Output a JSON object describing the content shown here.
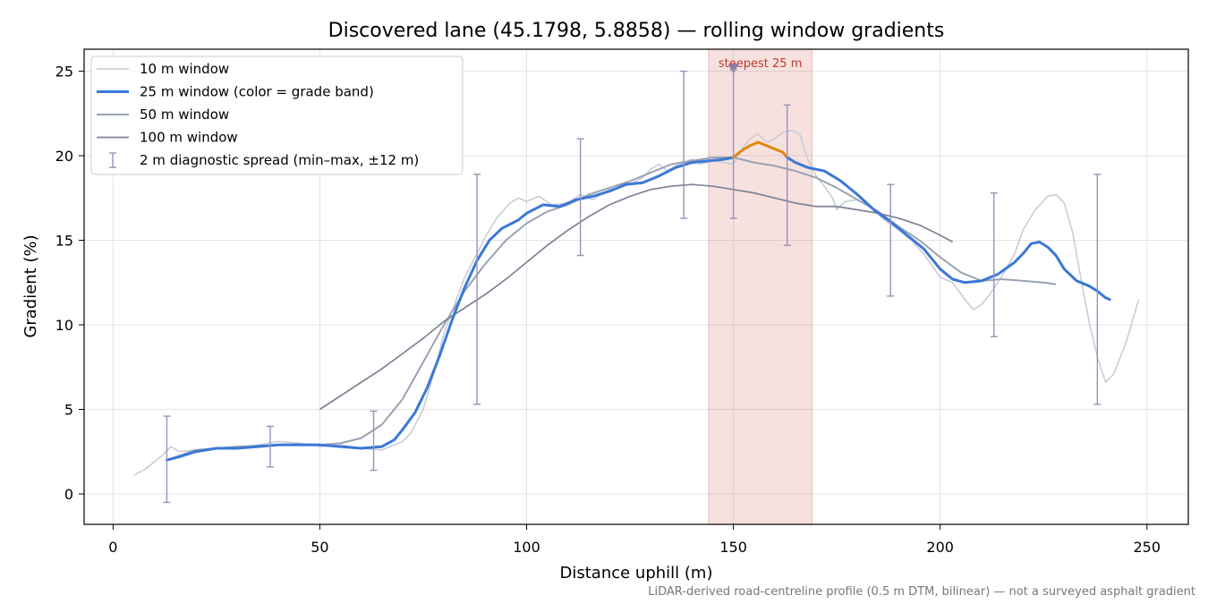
{
  "chart_data": {
    "type": "line",
    "title": "Discovered lane (45.1798, 5.8858) — rolling window gradients",
    "xlabel": "Distance uphill (m)",
    "ylabel": "Gradient (%)",
    "xlim": [
      -7,
      260
    ],
    "ylim": [
      -1.8,
      26.3
    ],
    "x_ticks": [
      0,
      50,
      100,
      150,
      200,
      250
    ],
    "y_ticks": [
      0,
      5,
      10,
      15,
      20,
      25
    ],
    "grid": true,
    "legend_position": "top-left",
    "footnote": "LiDAR-derived road-centreline profile (0.5 m DTM, bilinear) — not a surveyed asphalt gradient",
    "highlight_band": {
      "x_start": 144,
      "x_end": 169,
      "label": "steepest 25 m",
      "marker_x": 150,
      "marker_y": 25.1,
      "color": "#c0392b"
    },
    "series": [
      {
        "name": "10 m window",
        "color": "#c5cad6",
        "points": [
          [
            5,
            1.1
          ],
          [
            8,
            1.5
          ],
          [
            10,
            1.9
          ],
          [
            12,
            2.3
          ],
          [
            14,
            2.8
          ],
          [
            16,
            2.5
          ],
          [
            20,
            2.6
          ],
          [
            25,
            2.7
          ],
          [
            30,
            2.7
          ],
          [
            35,
            2.9
          ],
          [
            40,
            3.1
          ],
          [
            45,
            3.0
          ],
          [
            50,
            2.8
          ],
          [
            55,
            2.9
          ],
          [
            60,
            2.7
          ],
          [
            65,
            2.6
          ],
          [
            68,
            2.9
          ],
          [
            70,
            3.1
          ],
          [
            72,
            3.6
          ],
          [
            75,
            5.0
          ],
          [
            78,
            7.5
          ],
          [
            80,
            9.5
          ],
          [
            83,
            11.5
          ],
          [
            85,
            12.8
          ],
          [
            88,
            14.2
          ],
          [
            90,
            15.2
          ],
          [
            93,
            16.4
          ],
          [
            96,
            17.2
          ],
          [
            98,
            17.5
          ],
          [
            100,
            17.3
          ],
          [
            103,
            17.6
          ],
          [
            106,
            17.1
          ],
          [
            110,
            17.2
          ],
          [
            113,
            17.7
          ],
          [
            116,
            17.4
          ],
          [
            120,
            18.0
          ],
          [
            125,
            18.3
          ],
          [
            128,
            18.7
          ],
          [
            130,
            19.2
          ],
          [
            132,
            19.5
          ],
          [
            134,
            19.1
          ],
          [
            136,
            19.4
          ],
          [
            138,
            19.6
          ],
          [
            140,
            19.8
          ],
          [
            142,
            19.5
          ],
          [
            145,
            19.7
          ],
          [
            148,
            19.6
          ],
          [
            150,
            19.5
          ],
          [
            152,
            20.4
          ],
          [
            154,
            21.0
          ],
          [
            156,
            21.3
          ],
          [
            158,
            20.8
          ],
          [
            160,
            21.0
          ],
          [
            162,
            21.4
          ],
          [
            164,
            21.5
          ],
          [
            166,
            21.3
          ],
          [
            168,
            19.8
          ],
          [
            170,
            18.8
          ],
          [
            172,
            18.2
          ],
          [
            174,
            17.5
          ],
          [
            175,
            16.8
          ],
          [
            177,
            17.3
          ],
          [
            180,
            17.4
          ],
          [
            183,
            17.0
          ],
          [
            186,
            16.3
          ],
          [
            190,
            15.6
          ],
          [
            193,
            15.0
          ],
          [
            196,
            14.2
          ],
          [
            200,
            12.8
          ],
          [
            203,
            12.5
          ],
          [
            206,
            11.5
          ],
          [
            208,
            10.9
          ],
          [
            210,
            11.2
          ],
          [
            212,
            11.8
          ],
          [
            215,
            12.9
          ],
          [
            218,
            14.2
          ],
          [
            220,
            15.6
          ],
          [
            223,
            16.8
          ],
          [
            226,
            17.6
          ],
          [
            228,
            17.7
          ],
          [
            230,
            17.2
          ],
          [
            232,
            15.5
          ],
          [
            234,
            12.8
          ],
          [
            236,
            10.2
          ],
          [
            238,
            8.1
          ],
          [
            240,
            6.6
          ],
          [
            242,
            7.1
          ],
          [
            245,
            9.0
          ],
          [
            248,
            11.5
          ]
        ]
      },
      {
        "name": "25 m window (color = grade band)",
        "color": "#3a78d6",
        "highlight_color": "#e0870c",
        "points": [
          [
            13,
            2.0
          ],
          [
            16,
            2.2
          ],
          [
            20,
            2.5
          ],
          [
            25,
            2.7
          ],
          [
            30,
            2.7
          ],
          [
            35,
            2.8
          ],
          [
            40,
            2.9
          ],
          [
            45,
            2.9
          ],
          [
            50,
            2.9
          ],
          [
            55,
            2.8
          ],
          [
            60,
            2.7
          ],
          [
            65,
            2.8
          ],
          [
            68,
            3.2
          ],
          [
            70,
            3.8
          ],
          [
            73,
            4.8
          ],
          [
            76,
            6.3
          ],
          [
            79,
            8.2
          ],
          [
            82,
            10.3
          ],
          [
            85,
            12.2
          ],
          [
            88,
            13.8
          ],
          [
            91,
            15.0
          ],
          [
            94,
            15.7
          ],
          [
            98,
            16.2
          ],
          [
            100,
            16.6
          ],
          [
            104,
            17.1
          ],
          [
            108,
            17.0
          ],
          [
            112,
            17.4
          ],
          [
            116,
            17.6
          ],
          [
            120,
            17.9
          ],
          [
            124,
            18.3
          ],
          [
            128,
            18.4
          ],
          [
            132,
            18.8
          ],
          [
            136,
            19.3
          ],
          [
            140,
            19.6
          ],
          [
            144,
            19.7
          ],
          [
            148,
            19.8
          ],
          [
            150,
            19.9
          ],
          [
            152,
            20.3
          ],
          [
            154,
            20.6
          ],
          [
            156,
            20.8
          ],
          [
            158,
            20.6
          ],
          [
            160,
            20.4
          ],
          [
            162,
            20.2
          ],
          [
            163,
            19.9
          ],
          [
            165,
            19.6
          ],
          [
            168,
            19.3
          ],
          [
            172,
            19.1
          ],
          [
            176,
            18.5
          ],
          [
            180,
            17.7
          ],
          [
            184,
            16.8
          ],
          [
            188,
            16.1
          ],
          [
            192,
            15.3
          ],
          [
            196,
            14.5
          ],
          [
            200,
            13.3
          ],
          [
            203,
            12.7
          ],
          [
            206,
            12.5
          ],
          [
            210,
            12.6
          ],
          [
            214,
            13.0
          ],
          [
            218,
            13.7
          ],
          [
            220,
            14.2
          ],
          [
            222,
            14.8
          ],
          [
            224,
            14.9
          ],
          [
            226,
            14.6
          ],
          [
            228,
            14.1
          ],
          [
            230,
            13.3
          ],
          [
            233,
            12.6
          ],
          [
            236,
            12.3
          ],
          [
            238,
            12.0
          ],
          [
            240,
            11.6
          ],
          [
            241,
            11.5
          ]
        ]
      },
      {
        "name": "50 m window",
        "color": "#99a2b3",
        "points": [
          [
            13,
            2.0
          ],
          [
            20,
            2.6
          ],
          [
            30,
            2.8
          ],
          [
            40,
            2.9
          ],
          [
            50,
            2.9
          ],
          [
            55,
            3.0
          ],
          [
            60,
            3.3
          ],
          [
            65,
            4.1
          ],
          [
            70,
            5.6
          ],
          [
            75,
            7.8
          ],
          [
            80,
            10.0
          ],
          [
            85,
            12.0
          ],
          [
            90,
            13.6
          ],
          [
            95,
            15.0
          ],
          [
            100,
            16.0
          ],
          [
            105,
            16.7
          ],
          [
            110,
            17.1
          ],
          [
            115,
            17.7
          ],
          [
            120,
            18.1
          ],
          [
            125,
            18.5
          ],
          [
            130,
            19.0
          ],
          [
            135,
            19.5
          ],
          [
            140,
            19.7
          ],
          [
            145,
            19.9
          ],
          [
            150,
            19.9
          ],
          [
            155,
            19.6
          ],
          [
            160,
            19.4
          ],
          [
            165,
            19.1
          ],
          [
            170,
            18.7
          ],
          [
            175,
            18.1
          ],
          [
            180,
            17.4
          ],
          [
            185,
            16.7
          ],
          [
            190,
            15.8
          ],
          [
            195,
            15.0
          ],
          [
            200,
            14.0
          ],
          [
            205,
            13.1
          ],
          [
            210,
            12.6
          ],
          [
            215,
            12.7
          ],
          [
            220,
            12.6
          ],
          [
            225,
            12.5
          ],
          [
            228,
            12.4
          ]
        ]
      },
      {
        "name": "100 m window",
        "color": "#7b8394",
        "points": [
          [
            50,
            5.0
          ],
          [
            55,
            5.8
          ],
          [
            60,
            6.6
          ],
          [
            65,
            7.4
          ],
          [
            70,
            8.3
          ],
          [
            75,
            9.2
          ],
          [
            80,
            10.2
          ],
          [
            85,
            11.0
          ],
          [
            90,
            11.8
          ],
          [
            95,
            12.7
          ],
          [
            100,
            13.7
          ],
          [
            105,
            14.7
          ],
          [
            110,
            15.6
          ],
          [
            115,
            16.4
          ],
          [
            120,
            17.1
          ],
          [
            125,
            17.6
          ],
          [
            130,
            18.0
          ],
          [
            135,
            18.2
          ],
          [
            140,
            18.3
          ],
          [
            145,
            18.2
          ],
          [
            150,
            18.0
          ],
          [
            155,
            17.8
          ],
          [
            160,
            17.5
          ],
          [
            165,
            17.2
          ],
          [
            170,
            17.0
          ],
          [
            175,
            17.0
          ],
          [
            180,
            16.8
          ],
          [
            185,
            16.6
          ],
          [
            190,
            16.3
          ],
          [
            195,
            15.9
          ],
          [
            200,
            15.3
          ],
          [
            203,
            14.9
          ]
        ]
      },
      {
        "name": "2 m diagnostic spread (min–max, ±12 m)",
        "color": "#9893b8",
        "type": "errorbar",
        "bars": [
          [
            13,
            -0.5,
            4.6
          ],
          [
            38,
            1.6,
            4.0
          ],
          [
            63,
            1.4,
            4.9
          ],
          [
            88,
            5.3,
            18.9
          ],
          [
            113,
            14.1,
            21.0
          ],
          [
            138,
            16.3,
            25.0
          ],
          [
            150,
            16.3,
            25.1
          ],
          [
            163,
            14.7,
            23.0
          ],
          [
            188,
            11.7,
            18.3
          ],
          [
            213,
            9.3,
            17.8
          ],
          [
            238,
            5.3,
            18.9
          ]
        ]
      }
    ]
  }
}
